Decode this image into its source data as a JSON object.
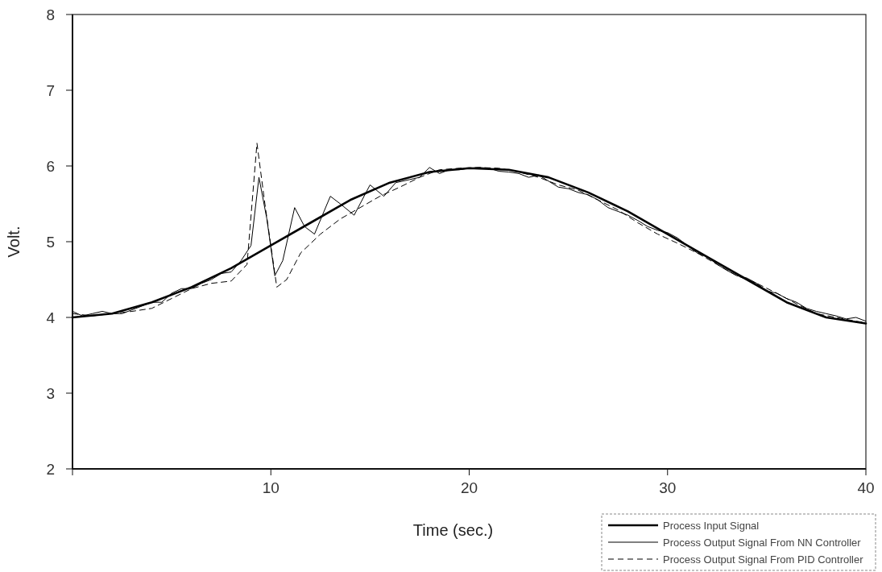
{
  "chart_data": {
    "type": "line",
    "xlabel": "Time (sec.)",
    "ylabel": "Volt.",
    "xlim": [
      0,
      40
    ],
    "ylim": [
      2,
      8
    ],
    "xticks": [
      {
        "value": 0,
        "label": null
      },
      10,
      20,
      30,
      40
    ],
    "yticks": [
      2,
      3,
      4,
      5,
      6,
      7,
      8
    ],
    "grid": false,
    "legend": "bottom right",
    "marker": "none",
    "series": [
      {
        "name": "Process Input Signal",
        "color": "#000000",
        "line_style": "solid",
        "x": [
          0,
          2,
          4,
          6,
          8,
          10,
          12,
          14,
          16,
          18,
          20,
          22,
          24,
          26,
          28,
          30,
          32,
          34,
          36,
          38,
          40
        ],
        "values": [
          4.0,
          4.05,
          4.2,
          4.4,
          4.65,
          4.95,
          5.25,
          5.55,
          5.78,
          5.92,
          5.97,
          5.95,
          5.85,
          5.65,
          5.4,
          5.1,
          4.8,
          4.5,
          4.2,
          4.0,
          3.92
        ]
      },
      {
        "name": "Process Output Signal From NN Controller",
        "color": "#000000",
        "line_style": "solid",
        "x": [
          0,
          0.5,
          1,
          1.5,
          2,
          2.5,
          3,
          3.5,
          4,
          4.5,
          5,
          5.5,
          6,
          6.5,
          7,
          7.5,
          8,
          8.5,
          9,
          9.4,
          9.8,
          10.2,
          10.6,
          11.2,
          11.7,
          12.2,
          13,
          13.5,
          14.2,
          15,
          15.7,
          16.3,
          17,
          17.5,
          18,
          18.5,
          19,
          19.5,
          20,
          20.5,
          21,
          21.5,
          22,
          22.5,
          23,
          23.5,
          24,
          24.5,
          25,
          25.5,
          26,
          26.5,
          27,
          27.5,
          28,
          28.5,
          29,
          29.5,
          30,
          30.5,
          31,
          31.5,
          32,
          32.5,
          33,
          33.5,
          34,
          34.5,
          35,
          35.5,
          36,
          36.5,
          37,
          37.5,
          38,
          38.5,
          39,
          39.5,
          40
        ],
        "values": [
          4.08,
          4.02,
          4.05,
          4.08,
          4.05,
          4.05,
          4.1,
          4.15,
          4.2,
          4.2,
          4.32,
          4.38,
          4.38,
          4.45,
          4.5,
          4.58,
          4.6,
          4.75,
          4.95,
          5.85,
          5.3,
          4.55,
          4.75,
          5.45,
          5.2,
          5.1,
          5.6,
          5.5,
          5.35,
          5.75,
          5.6,
          5.78,
          5.82,
          5.85,
          5.98,
          5.9,
          5.95,
          5.95,
          5.97,
          5.98,
          5.97,
          5.93,
          5.92,
          5.9,
          5.85,
          5.88,
          5.8,
          5.72,
          5.7,
          5.65,
          5.62,
          5.55,
          5.45,
          5.4,
          5.35,
          5.28,
          5.2,
          5.15,
          5.12,
          5.05,
          4.95,
          4.85,
          4.8,
          4.7,
          4.62,
          4.55,
          4.52,
          4.45,
          4.35,
          4.32,
          4.25,
          4.2,
          4.12,
          4.08,
          4.05,
          4.02,
          3.98,
          4.0,
          3.95
        ]
      },
      {
        "name": "Process Output Signal From PID Controller",
        "color": "#000000",
        "line_style": "dashed",
        "x": [
          0,
          1,
          2,
          3,
          4,
          5,
          6,
          7,
          8,
          8.8,
          9.3,
          9.7,
          10.3,
          10.8,
          11.5,
          12.5,
          13.5,
          14.5,
          15.5,
          16.5,
          17.5,
          18.5,
          19.5,
          20.5,
          21.5,
          22.5,
          23.5,
          24.5,
          25.5,
          26.5,
          27.5,
          28.5,
          29.5,
          30.5,
          31.5,
          32.5,
          33.5,
          34.5,
          35.5,
          36.5,
          37.5,
          38.5,
          39.5,
          40
        ],
        "values": [
          4.05,
          4.02,
          4.05,
          4.08,
          4.12,
          4.25,
          4.38,
          4.45,
          4.48,
          4.7,
          6.3,
          5.5,
          4.4,
          4.5,
          4.85,
          5.1,
          5.3,
          5.45,
          5.6,
          5.72,
          5.85,
          5.95,
          5.97,
          5.98,
          5.97,
          5.92,
          5.85,
          5.75,
          5.68,
          5.55,
          5.42,
          5.25,
          5.1,
          4.98,
          4.85,
          4.7,
          4.55,
          4.45,
          4.32,
          4.18,
          4.05,
          4.0,
          3.95,
          3.93
        ]
      }
    ]
  }
}
